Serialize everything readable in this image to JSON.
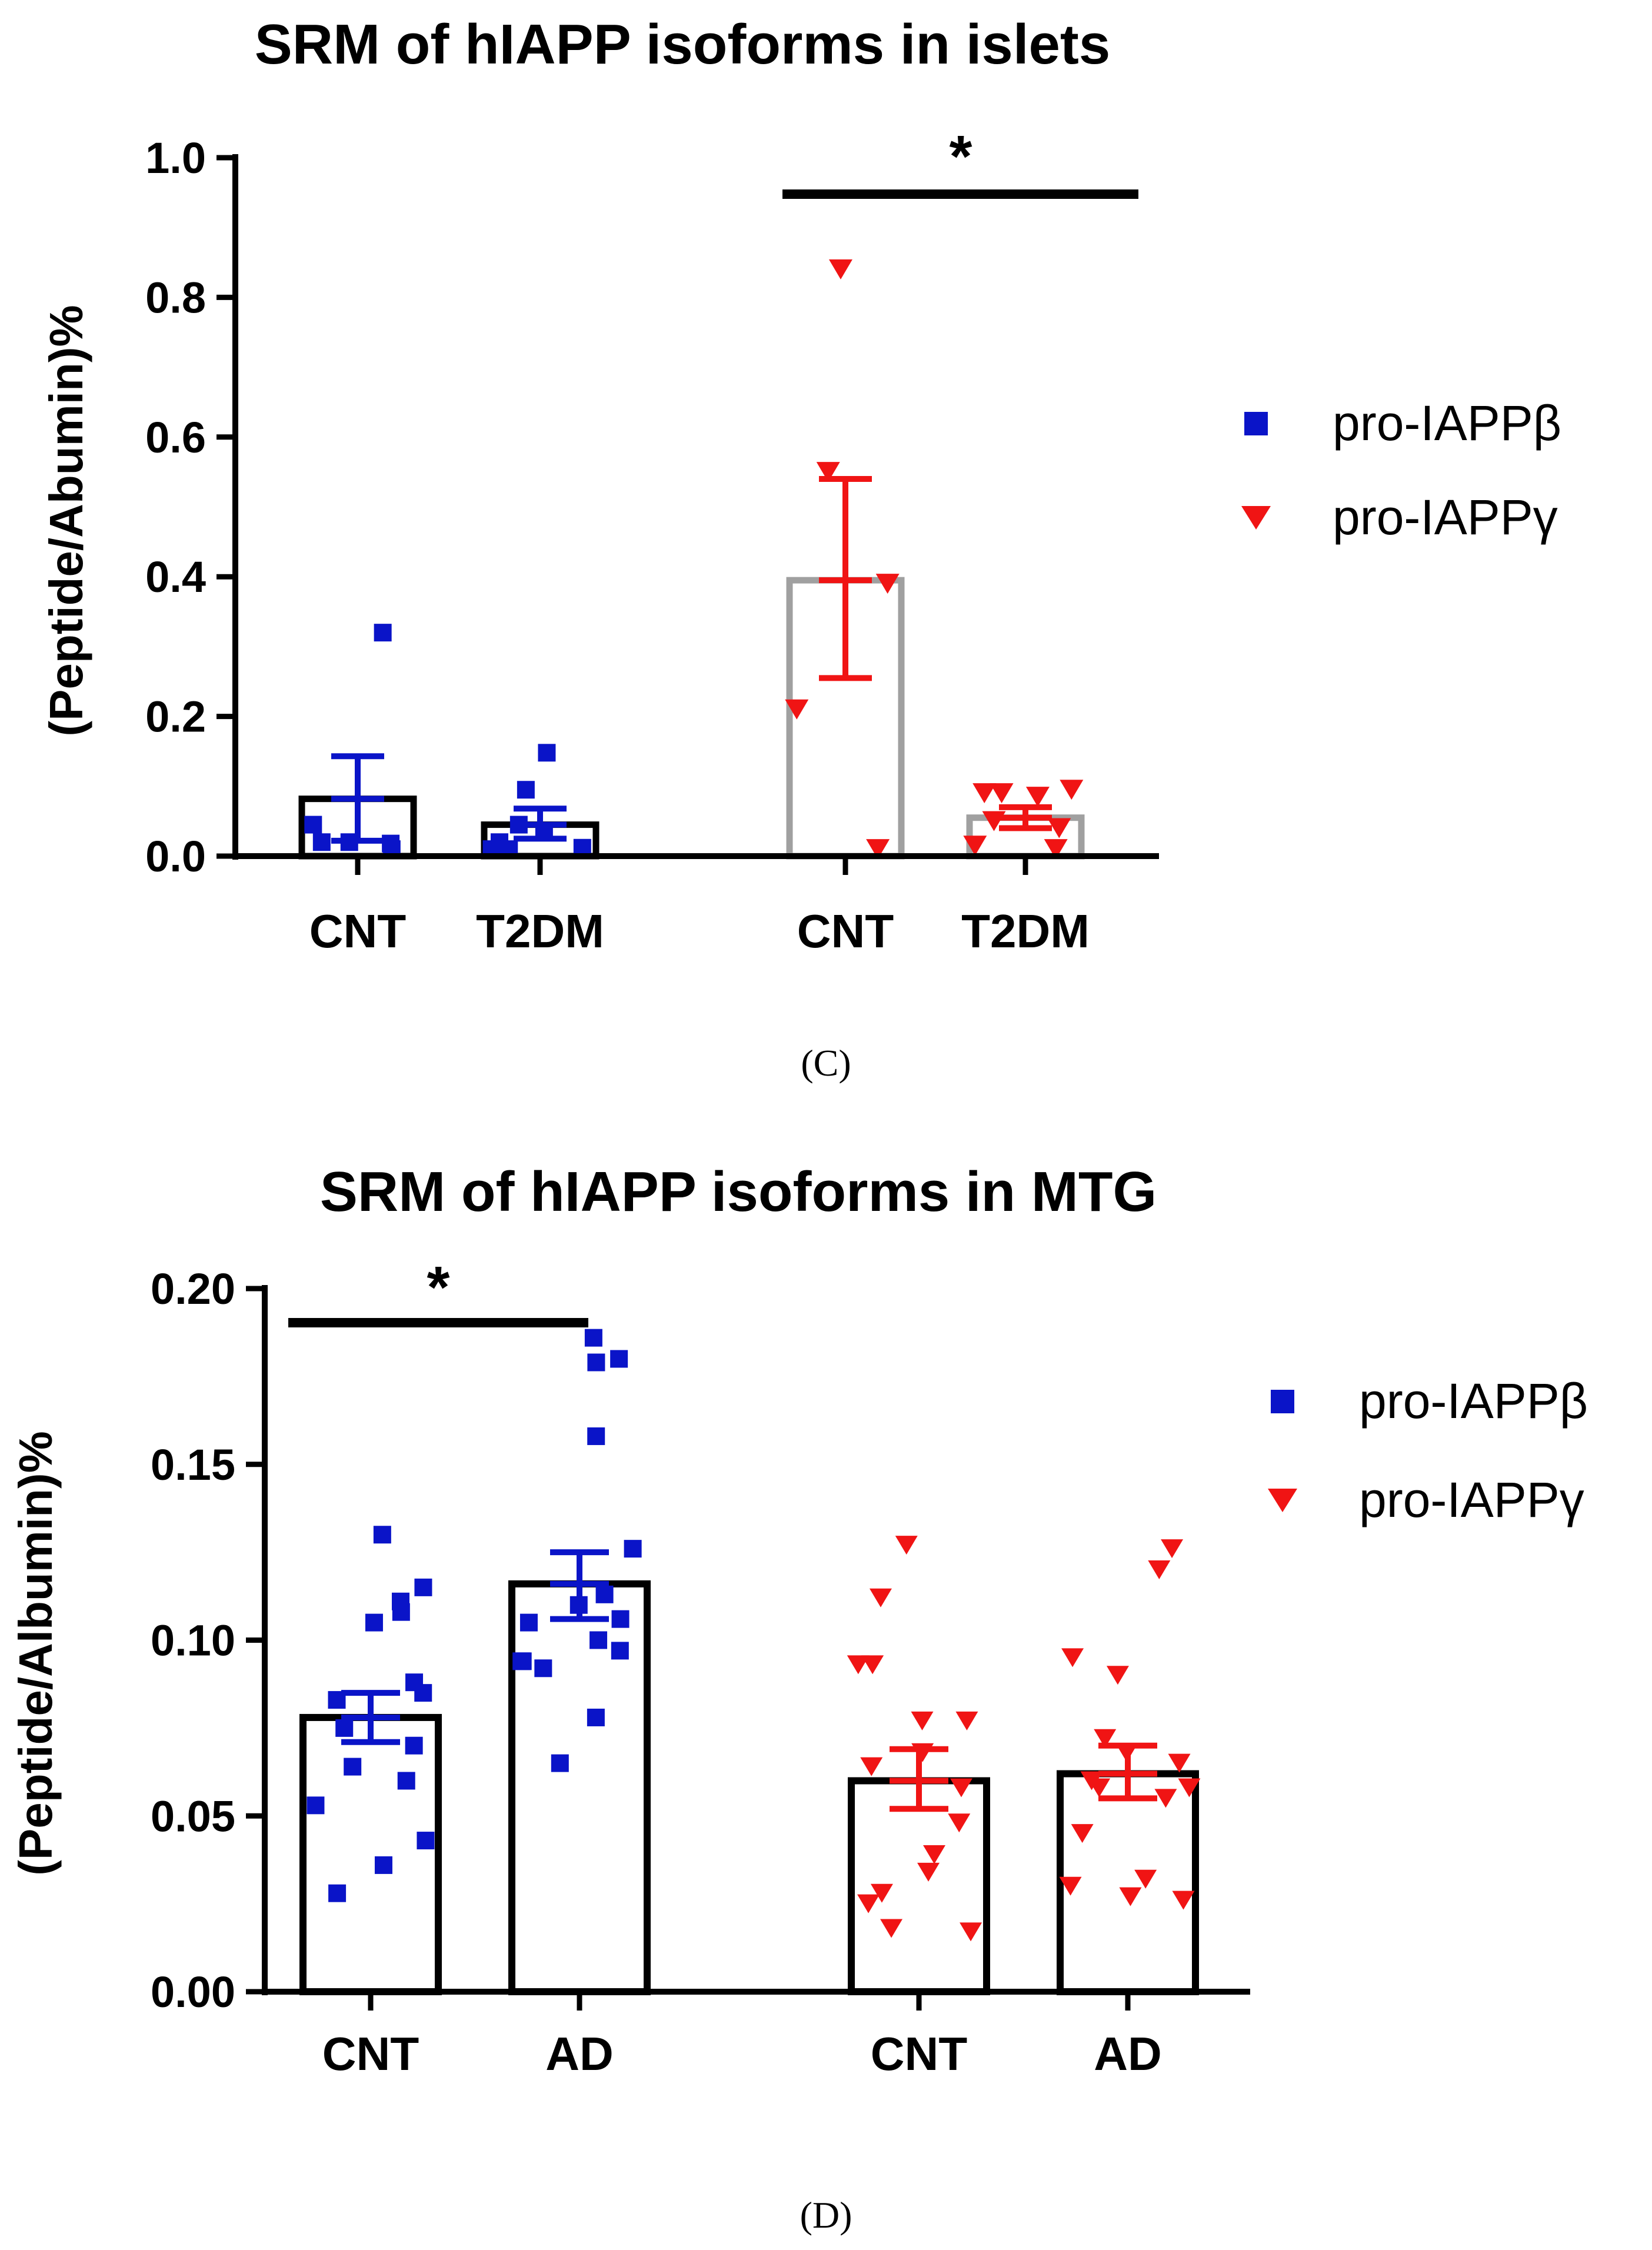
{
  "chart_data": [
    {
      "type": "bar",
      "title": "SRM of hIAPP isoforms in islets",
      "ylabel": "(Peptide/Abumin)%",
      "xlabel": "",
      "ylim": [
        0,
        1.0
      ],
      "yticks": [
        "0.0",
        "0.2",
        "0.4",
        "0.6",
        "0.8",
        "1.0"
      ],
      "panel_label": "(C)",
      "significance": "*",
      "legend_position": "right",
      "legend": [
        {
          "label": "pro-IAPPβ",
          "marker": "square",
          "color": "#0a14c8"
        },
        {
          "label": "pro-IAPPγ",
          "marker": "triangle-down",
          "color": "#f01414"
        }
      ],
      "groups": [
        {
          "category": "CNT",
          "series": "pro-IAPPβ",
          "mean": 0.082,
          "sem_low": 0.022,
          "sem_high": 0.143,
          "bar_color": "#000000",
          "err_color": "#0a14c8",
          "points": [
            0.32,
            0.045,
            0.02,
            0.01,
            0.02,
            0.018
          ]
        },
        {
          "category": "T2DM",
          "series": "pro-IAPPβ",
          "mean": 0.045,
          "sem_low": 0.025,
          "sem_high": 0.068,
          "bar_color": "#000000",
          "err_color": "#0a14c8",
          "points": [
            0.148,
            0.095,
            0.045,
            0.035,
            0.02,
            0.01,
            0.012,
            0.01
          ]
        },
        {
          "category": "CNT",
          "series": "pro-IAPPγ",
          "mean": 0.395,
          "sem_low": 0.255,
          "sem_high": 0.54,
          "bar_color": "#a0a0a0",
          "err_color": "#f01414",
          "points": [
            0.84,
            0.55,
            0.39,
            0.21,
            0.01
          ]
        },
        {
          "category": "T2DM",
          "series": "pro-IAPPγ",
          "mean": 0.055,
          "sem_low": 0.04,
          "sem_high": 0.07,
          "bar_color": "#a0a0a0",
          "err_color": "#f01414",
          "points": [
            0.09,
            0.095,
            0.085,
            0.09,
            0.05,
            0.04,
            0.01,
            0.015
          ]
        }
      ]
    },
    {
      "type": "bar",
      "title": "SRM of hIAPP isoforms in MTG",
      "ylabel": "(Peptide/Albumin)%",
      "xlabel": "",
      "ylim": [
        0,
        0.2
      ],
      "yticks": [
        "0.00",
        "0.05",
        "0.10",
        "0.15",
        "0.20"
      ],
      "panel_label": "(D)",
      "significance": "*",
      "legend_position": "right",
      "legend": [
        {
          "label": "pro-IAPPβ",
          "marker": "square",
          "color": "#0a14c8"
        },
        {
          "label": "pro-IAPPγ",
          "marker": "triangle-down",
          "color": "#f01414"
        }
      ],
      "groups": [
        {
          "category": "CNT",
          "series": "pro-IAPPβ",
          "mean": 0.078,
          "sem_low": 0.071,
          "sem_high": 0.085,
          "bar_color": "#000000",
          "err_color": "#0a14c8",
          "points": [
            0.13,
            0.115,
            0.108,
            0.111,
            0.105,
            0.088,
            0.085,
            0.083,
            0.075,
            0.07,
            0.064,
            0.06,
            0.053,
            0.043,
            0.036,
            0.028
          ]
        },
        {
          "category": "AD",
          "series": "pro-IAPPβ",
          "mean": 0.116,
          "sem_low": 0.106,
          "sem_high": 0.125,
          "bar_color": "#000000",
          "err_color": "#0a14c8",
          "points": [
            0.186,
            0.18,
            0.179,
            0.158,
            0.126,
            0.113,
            0.105,
            0.11,
            0.106,
            0.1,
            0.097,
            0.094,
            0.092,
            0.094,
            0.078,
            0.065
          ]
        },
        {
          "category": "CNT",
          "series": "pro-IAPPγ",
          "mean": 0.06,
          "sem_low": 0.052,
          "sem_high": 0.069,
          "bar_color": "#000000",
          "err_color": "#f01414",
          "points": [
            0.127,
            0.112,
            0.093,
            0.093,
            0.077,
            0.077,
            0.068,
            0.064,
            0.058,
            0.048,
            0.039,
            0.034,
            0.028,
            0.025,
            0.018,
            0.017
          ]
        },
        {
          "category": "AD",
          "series": "pro-IAPPγ",
          "mean": 0.062,
          "sem_low": 0.055,
          "sem_high": 0.07,
          "bar_color": "#000000",
          "err_color": "#f01414",
          "points": [
            0.126,
            0.12,
            0.095,
            0.09,
            0.072,
            0.068,
            0.065,
            0.06,
            0.058,
            0.058,
            0.055,
            0.045,
            0.032,
            0.03,
            0.027,
            0.026
          ]
        }
      ]
    }
  ]
}
